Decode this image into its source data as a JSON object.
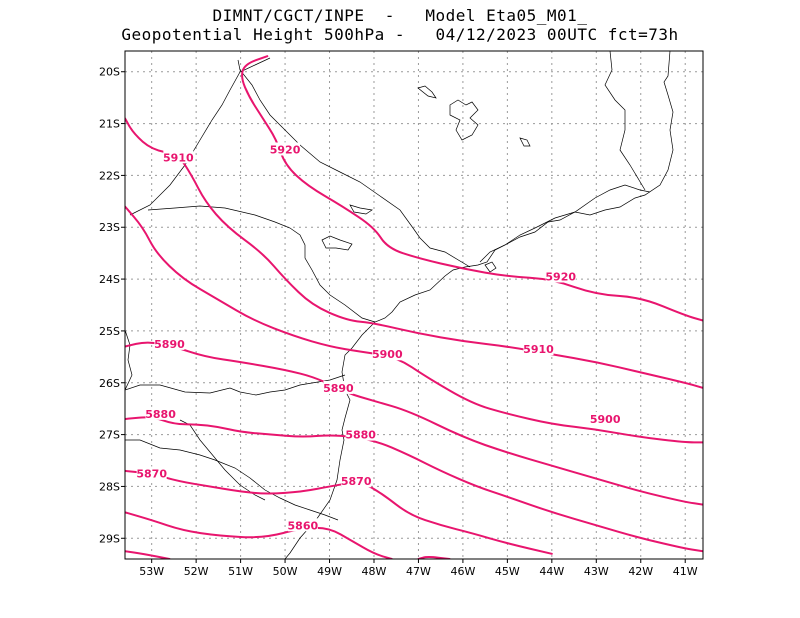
{
  "title_line1": "DIMNT/CGCT/INPE  -   Model Eta05_M01_",
  "title_line2": "Geopotential Height 500hPa -   04/12/2023 00UTC fct=73h",
  "colors": {
    "contour": "#e8156e",
    "coast": "#000000",
    "grid": "#9a9a9a"
  },
  "chart_data": {
    "type": "contour-map",
    "variable": "Geopotential Height 500hPa",
    "lon_range": [
      -53.6,
      -40.6
    ],
    "lat_range": [
      -29.4,
      -19.6
    ],
    "lat_ticks": [
      {
        "v": -20,
        "label": "20S"
      },
      {
        "v": -21,
        "label": "21S"
      },
      {
        "v": -22,
        "label": "22S"
      },
      {
        "v": -23,
        "label": "23S"
      },
      {
        "v": -24,
        "label": "24S"
      },
      {
        "v": -25,
        "label": "25S"
      },
      {
        "v": -26,
        "label": "26S"
      },
      {
        "v": -27,
        "label": "27S"
      },
      {
        "v": -28,
        "label": "28S"
      },
      {
        "v": -29,
        "label": "29S"
      }
    ],
    "lon_ticks": [
      {
        "v": -53,
        "label": "53W"
      },
      {
        "v": -52,
        "label": "52W"
      },
      {
        "v": -51,
        "label": "51W"
      },
      {
        "v": -50,
        "label": "50W"
      },
      {
        "v": -49,
        "label": "49W"
      },
      {
        "v": -48,
        "label": "48W"
      },
      {
        "v": -47,
        "label": "47W"
      },
      {
        "v": -46,
        "label": "46W"
      },
      {
        "v": -45,
        "label": "45W"
      },
      {
        "v": -44,
        "label": "44W"
      },
      {
        "v": -43,
        "label": "43W"
      },
      {
        "v": -42,
        "label": "42W"
      },
      {
        "v": -41,
        "label": "41W"
      }
    ],
    "contours": [
      {
        "value": 5920,
        "points": [
          [
            -50.4,
            -19.7
          ],
          [
            -50.9,
            -19.85
          ],
          [
            -51.0,
            -20.1
          ],
          [
            -50.8,
            -20.5
          ],
          [
            -50.5,
            -20.9
          ],
          [
            -50.2,
            -21.3
          ],
          [
            -50.0,
            -21.8
          ],
          [
            -49.5,
            -22.2
          ],
          [
            -48.7,
            -22.6
          ],
          [
            -48.0,
            -23.0
          ],
          [
            -47.7,
            -23.4
          ],
          [
            -47.0,
            -23.6
          ],
          [
            -46.0,
            -23.8
          ],
          [
            -45.0,
            -23.95
          ],
          [
            -44.0,
            -24.0
          ],
          [
            -43.0,
            -24.3
          ],
          [
            -42.0,
            -24.35
          ],
          [
            -41.0,
            -24.7
          ],
          [
            -40.6,
            -24.8
          ]
        ]
      },
      {
        "value": 5910,
        "points": [
          [
            -53.6,
            -20.9
          ],
          [
            -53.4,
            -21.2
          ],
          [
            -53.0,
            -21.5
          ],
          [
            -52.4,
            -21.6
          ],
          [
            -52.1,
            -22.0
          ],
          [
            -51.8,
            -22.5
          ],
          [
            -51.3,
            -23.0
          ],
          [
            -50.5,
            -23.5
          ],
          [
            -50.0,
            -24.0
          ],
          [
            -49.4,
            -24.5
          ],
          [
            -48.6,
            -24.8
          ],
          [
            -48.0,
            -24.85
          ],
          [
            -47.0,
            -25.05
          ],
          [
            -46.0,
            -25.2
          ],
          [
            -45.0,
            -25.3
          ],
          [
            -44.0,
            -25.45
          ],
          [
            -43.0,
            -25.6
          ],
          [
            -42.0,
            -25.8
          ],
          [
            -41.0,
            -26.0
          ],
          [
            -40.6,
            -26.1
          ]
        ]
      },
      {
        "value": 5900,
        "points": [
          [
            -53.6,
            -22.6
          ],
          [
            -53.2,
            -23.0
          ],
          [
            -52.9,
            -23.5
          ],
          [
            -52.3,
            -24.0
          ],
          [
            -51.5,
            -24.4
          ],
          [
            -50.7,
            -24.8
          ],
          [
            -49.8,
            -25.1
          ],
          [
            -49.0,
            -25.3
          ],
          [
            -48.3,
            -25.4
          ],
          [
            -47.5,
            -25.5
          ],
          [
            -46.8,
            -25.9
          ],
          [
            -45.8,
            -26.4
          ],
          [
            -45.0,
            -26.6
          ],
          [
            -44.0,
            -26.8
          ],
          [
            -43.0,
            -26.9
          ],
          [
            -42.0,
            -27.05
          ],
          [
            -41.0,
            -27.15
          ],
          [
            -40.6,
            -27.15
          ]
        ]
      },
      {
        "value": 5890,
        "points": [
          [
            -53.6,
            -25.3
          ],
          [
            -53.1,
            -25.2
          ],
          [
            -52.5,
            -25.3
          ],
          [
            -51.8,
            -25.5
          ],
          [
            -51.0,
            -25.6
          ],
          [
            -50.0,
            -25.75
          ],
          [
            -49.3,
            -25.9
          ],
          [
            -48.6,
            -26.2
          ],
          [
            -48.0,
            -26.35
          ],
          [
            -47.2,
            -26.55
          ],
          [
            -46.0,
            -27.05
          ],
          [
            -45.0,
            -27.35
          ],
          [
            -44.0,
            -27.6
          ],
          [
            -43.0,
            -27.85
          ],
          [
            -42.0,
            -28.1
          ],
          [
            -41.0,
            -28.3
          ],
          [
            -40.6,
            -28.35
          ]
        ]
      },
      {
        "value": 5880,
        "points": [
          [
            -53.6,
            -26.7
          ],
          [
            -53.0,
            -26.65
          ],
          [
            -52.5,
            -26.8
          ],
          [
            -52.0,
            -26.8
          ],
          [
            -51.5,
            -26.85
          ],
          [
            -51.0,
            -26.95
          ],
          [
            -50.3,
            -27.0
          ],
          [
            -49.6,
            -27.05
          ],
          [
            -48.9,
            -27.0
          ],
          [
            -48.0,
            -27.1
          ],
          [
            -47.2,
            -27.4
          ],
          [
            -46.5,
            -27.7
          ],
          [
            -45.7,
            -28.0
          ],
          [
            -45.0,
            -28.2
          ],
          [
            -44.0,
            -28.5
          ],
          [
            -43.0,
            -28.75
          ],
          [
            -42.0,
            -29.0
          ],
          [
            -41.0,
            -29.2
          ],
          [
            -40.6,
            -29.25
          ]
        ]
      },
      {
        "value": 5870,
        "points": [
          [
            -53.6,
            -27.7
          ],
          [
            -53.0,
            -27.75
          ],
          [
            -52.4,
            -27.9
          ],
          [
            -51.7,
            -28.0
          ],
          [
            -51.0,
            -28.1
          ],
          [
            -50.4,
            -28.15
          ],
          [
            -49.6,
            -28.1
          ],
          [
            -49.0,
            -28.0
          ],
          [
            -48.3,
            -27.9
          ],
          [
            -47.8,
            -28.15
          ],
          [
            -47.2,
            -28.55
          ],
          [
            -46.5,
            -28.75
          ],
          [
            -45.8,
            -28.9
          ],
          [
            -45.0,
            -29.1
          ],
          [
            -44.0,
            -29.3
          ]
        ]
      },
      {
        "value": 5860,
        "points": [
          [
            -53.6,
            -28.5
          ],
          [
            -53.0,
            -28.65
          ],
          [
            -52.3,
            -28.85
          ],
          [
            -51.5,
            -28.95
          ],
          [
            -50.5,
            -29.0
          ],
          [
            -49.6,
            -28.8
          ],
          [
            -49.0,
            -28.8
          ],
          [
            -48.5,
            -29.05
          ],
          [
            -48.0,
            -29.3
          ],
          [
            -47.6,
            -29.4
          ]
        ]
      },
      {
        "value": 5850,
        "points": [
          [
            -53.6,
            -29.25
          ],
          [
            -53.2,
            -29.3
          ],
          [
            -52.6,
            -29.4
          ]
        ]
      },
      {
        "value": 5850,
        "points": [
          [
            -47.0,
            -29.4
          ],
          [
            -46.8,
            -29.35
          ],
          [
            -46.3,
            -29.4
          ]
        ]
      }
    ],
    "contour_labels": [
      {
        "text": "5920",
        "lon": -50.0,
        "lat": -21.5
      },
      {
        "text": "5910",
        "lon": -52.4,
        "lat": -21.65
      },
      {
        "text": "5920",
        "lon": -43.8,
        "lat": -23.95
      },
      {
        "text": "5890",
        "lon": -52.6,
        "lat": -25.25
      },
      {
        "text": "5900",
        "lon": -47.7,
        "lat": -25.45
      },
      {
        "text": "5910",
        "lon": -44.3,
        "lat": -25.35
      },
      {
        "text": "5880",
        "lon": -52.8,
        "lat": -26.6
      },
      {
        "text": "5890",
        "lon": -48.8,
        "lat": -26.1
      },
      {
        "text": "5900",
        "lon": -42.8,
        "lat": -26.7
      },
      {
        "text": "5880",
        "lon": -48.3,
        "lat": -27.0
      },
      {
        "text": "5870",
        "lon": -53.0,
        "lat": -27.75
      },
      {
        "text": "5870",
        "lon": -48.4,
        "lat": -27.9
      },
      {
        "text": "5860",
        "lon": -49.6,
        "lat": -28.75
      }
    ]
  }
}
